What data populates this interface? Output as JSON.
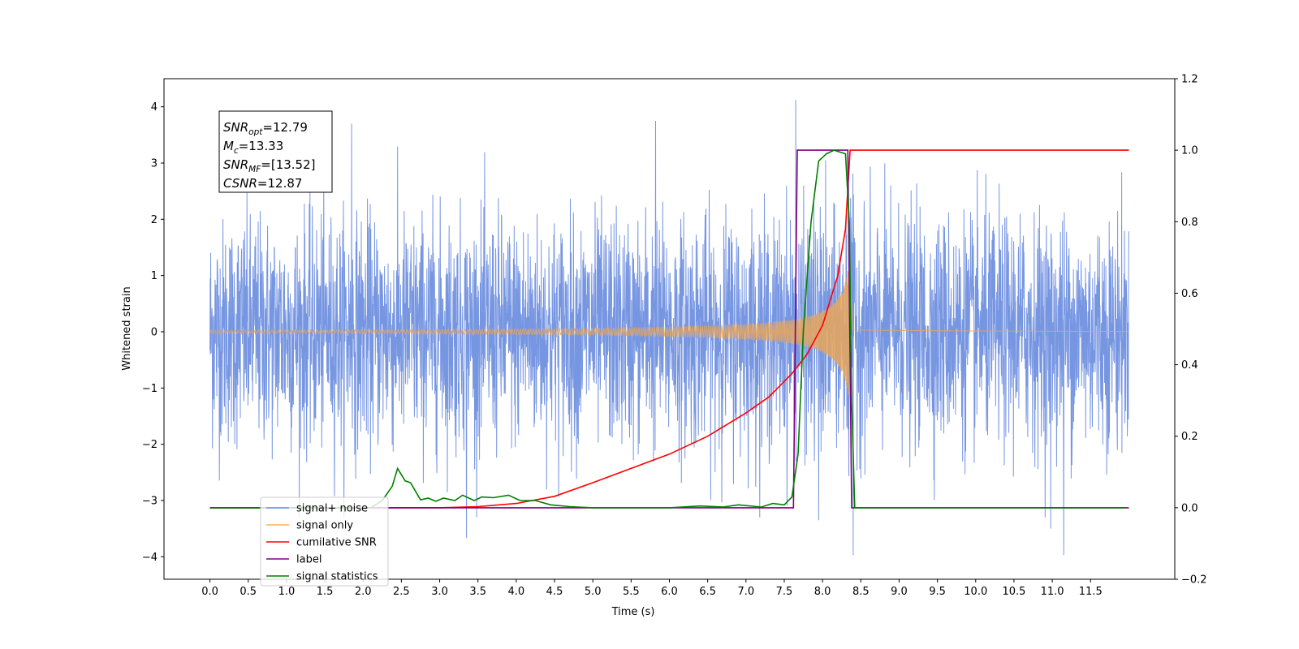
{
  "chart_data": {
    "type": "line",
    "xlabel": "Time (s)",
    "ylabel": "Whitened strain",
    "xlim": [
      -0.6,
      12.6
    ],
    "ylim": [
      -4.4,
      4.5
    ],
    "ylim_right": [
      -0.2,
      1.2
    ],
    "xticks": [
      0.0,
      0.5,
      1.0,
      1.5,
      2.0,
      2.5,
      3.0,
      3.5,
      4.0,
      4.5,
      5.0,
      5.5,
      6.0,
      6.5,
      7.0,
      7.5,
      8.0,
      8.5,
      9.0,
      9.5,
      10.0,
      10.5,
      11.0,
      11.5
    ],
    "xtick_labels": [
      "0.0",
      "0.5",
      "1.0",
      "1.5",
      "2.0",
      "2.5",
      "3.0",
      "3.5",
      "4.0",
      "4.5",
      "5.0",
      "5.5",
      "6.0",
      "6.5",
      "7.0",
      "7.5",
      "8.0",
      "8.5",
      "9.0",
      "9.5",
      "10.0",
      "10.5",
      "11.0",
      "11.5"
    ],
    "yticks_left": [
      4,
      3,
      2,
      1,
      0,
      -1,
      -2,
      -3,
      -4
    ],
    "yticks_left_labels": [
      "4",
      "3",
      "2",
      "1",
      "0",
      "−1",
      "−2",
      "−3",
      "−4"
    ],
    "yticks_right": [
      1.2,
      1.0,
      0.8,
      0.6,
      0.4,
      0.2,
      0.0,
      -0.2
    ],
    "yticks_right_labels": [
      "1.2",
      "1.0",
      "0.8",
      "0.6",
      "0.4",
      "0.2",
      "0.0",
      "−0.2"
    ],
    "grid": false,
    "legend_position": "lower-left",
    "annotation": {
      "lines": [
        {
          "sym": "SNR",
          "sub": "opt",
          "value": "=12.79"
        },
        {
          "sym": "M",
          "sub": "c",
          "value": "=13.33"
        },
        {
          "sym": "SNR",
          "sub": "MF",
          "value": "=[13.52]"
        },
        {
          "sym": "CSNR",
          "sub": "",
          "value": "=12.87"
        }
      ]
    },
    "legend": [
      {
        "label": "signal+ noise",
        "color": "#7090e0"
      },
      {
        "label": "signal only",
        "color": "#ffb347"
      },
      {
        "label": "cumilative SNR",
        "color": "#ff0000"
      },
      {
        "label": "label",
        "color": "#800080"
      },
      {
        "label": "signal statistics",
        "color": "#008000"
      }
    ],
    "series": [
      {
        "name": "signal+ noise",
        "axis": "left",
        "color": "#7090e0",
        "x_range": [
          0.0,
          12.0
        ],
        "sigma": 1.0,
        "peak_points": [
          {
            "x": 7.65,
            "y": 4.12
          },
          {
            "x": 1.85,
            "y": 3.7
          },
          {
            "x": 5.82,
            "y": 3.75
          },
          {
            "x": 8.4,
            "y": -3.97
          },
          {
            "x": 3.35,
            "y": -3.67
          },
          {
            "x": 11.15,
            "y": -3.97
          },
          {
            "x": 10.98,
            "y": -3.5
          },
          {
            "x": 7.95,
            "y": -3.35
          }
        ]
      },
      {
        "name": "signal only",
        "axis": "left",
        "color": "#e8a65a",
        "x_range": [
          0.0,
          12.0
        ],
        "chirp": {
          "t_merger": 8.35,
          "amplitude_at_merger": 1.25,
          "ringdown_amplitude": 0.04
        }
      },
      {
        "name": "cumilative SNR",
        "axis": "right",
        "color": "#ff0000",
        "x": [
          0.0,
          3.0,
          3.5,
          4.0,
          4.5,
          5.0,
          5.5,
          6.0,
          6.5,
          7.0,
          7.3,
          7.6,
          7.8,
          8.0,
          8.2,
          8.3,
          8.36,
          12.0
        ],
        "y": [
          0.0,
          0.0,
          0.003,
          0.012,
          0.032,
          0.07,
          0.11,
          0.15,
          0.2,
          0.265,
          0.31,
          0.375,
          0.43,
          0.51,
          0.65,
          0.78,
          1.0,
          1.0
        ]
      },
      {
        "name": "label",
        "axis": "right",
        "color": "#800080",
        "x": [
          0.0,
          7.62,
          7.67,
          8.33,
          8.38,
          12.0
        ],
        "y": [
          0.0,
          0.0,
          1.0,
          1.0,
          0.0,
          0.0
        ]
      },
      {
        "name": "signal statistics",
        "axis": "right",
        "color": "#008000",
        "x": [
          0.0,
          2.1,
          2.25,
          2.38,
          2.45,
          2.55,
          2.62,
          2.7,
          2.75,
          2.85,
          2.95,
          3.05,
          3.2,
          3.3,
          3.45,
          3.55,
          3.7,
          3.9,
          4.05,
          4.25,
          4.45,
          4.7,
          5.0,
          6.0,
          6.4,
          6.7,
          6.9,
          7.2,
          7.35,
          7.5,
          7.6,
          7.68,
          7.75,
          7.85,
          7.95,
          8.05,
          8.15,
          8.3,
          8.35,
          8.38,
          8.42,
          11.95
        ],
        "y": [
          0.0,
          0.0,
          0.02,
          0.06,
          0.11,
          0.075,
          0.07,
          0.04,
          0.022,
          0.027,
          0.018,
          0.027,
          0.02,
          0.035,
          0.02,
          0.03,
          0.028,
          0.035,
          0.02,
          0.02,
          0.008,
          0.003,
          0.0,
          0.0,
          0.005,
          0.002,
          0.008,
          0.002,
          0.012,
          0.008,
          0.03,
          0.15,
          0.5,
          0.8,
          0.97,
          0.99,
          1.0,
          0.99,
          0.8,
          0.3,
          0.0,
          0.0
        ]
      }
    ]
  }
}
